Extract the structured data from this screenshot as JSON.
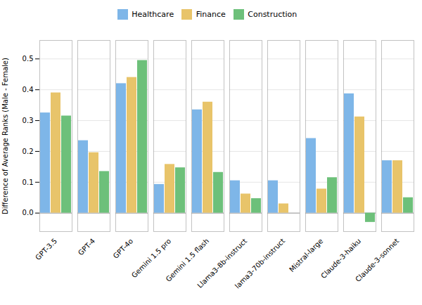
{
  "chart_data": {
    "type": "bar",
    "categories": [
      "GPT-3.5",
      "GPT-4",
      "GPT-4o",
      "Gemini 1.5 pro",
      "Gemini 1.5 flash",
      "Llama3-8b-instruct",
      "lama3-70b-instruct",
      "Mistral-large",
      "Claude-3-haiku",
      "Claude-3-sonnet"
    ],
    "series": [
      {
        "name": "Healthcare",
        "color": "#7EB6E8",
        "values": [
          0.325,
          0.235,
          0.42,
          0.093,
          0.335,
          0.105,
          0.105,
          0.242,
          0.387,
          0.17
        ]
      },
      {
        "name": "Finance",
        "color": "#E8C46A",
        "values": [
          0.39,
          0.196,
          0.44,
          0.158,
          0.36,
          0.062,
          0.03,
          0.078,
          0.312,
          0.17
        ]
      },
      {
        "name": "Construction",
        "color": "#6DC07A",
        "values": [
          0.315,
          0.135,
          0.495,
          0.147,
          0.132,
          0.047,
          0.0,
          0.115,
          -0.03,
          0.05
        ]
      }
    ],
    "ylabel": "Difference of Average Ranks (Male - Female)",
    "ylim": [
      -0.06,
      0.56
    ],
    "yticks": [
      {
        "value": 0.0,
        "label": "0.0"
      },
      0.1,
      0.2,
      0.3,
      0.4,
      0.5
    ],
    "grid": true,
    "legend": "upper center"
  }
}
